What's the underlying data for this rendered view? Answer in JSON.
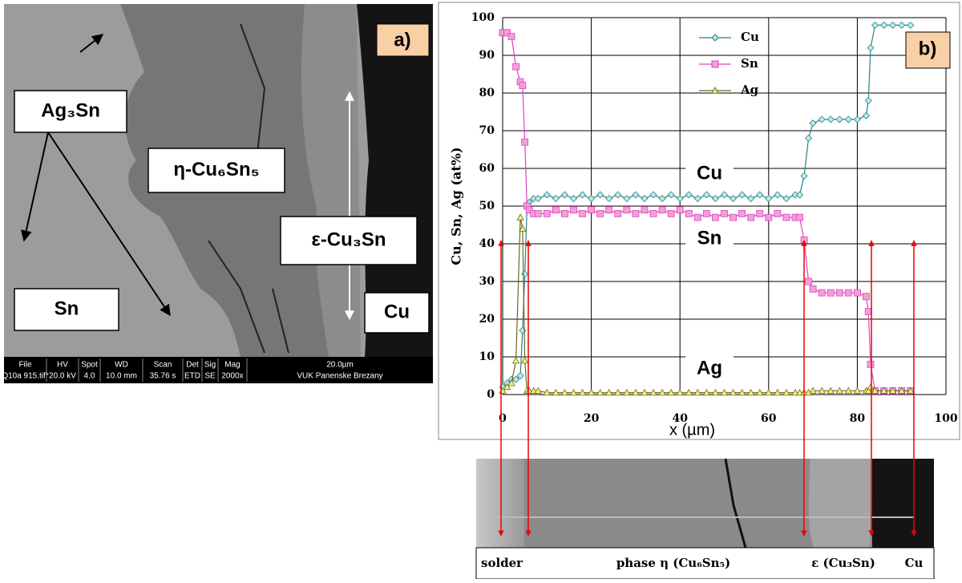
{
  "panel_a": {
    "label": "a)",
    "phases": [
      "Ag₃Sn",
      "η-Cu₆Sn₅",
      "ε-Cu₃Sn",
      "Sn",
      "Cu"
    ],
    "info_bar": [
      {
        "label": "File",
        "value": "Q10a 915.tif*"
      },
      {
        "label": "HV",
        "value": "20.0 kV"
      },
      {
        "label": "Spot",
        "value": "4.0"
      },
      {
        "label": "WD",
        "value": "10.0 mm"
      },
      {
        "label": "Scan",
        "value": "35.76 s"
      },
      {
        "label": "Det",
        "value": "ETD"
      },
      {
        "label": "Sig",
        "value": "SE"
      },
      {
        "label": "Mag",
        "value": "2000x"
      },
      {
        "label": "20.0µm",
        "value": "VUK Panenske Brezany"
      }
    ]
  },
  "chart_data": {
    "type": "line",
    "panel_label": "b)",
    "x_label": "x (µm)",
    "y_label": "Cu, Sn, Ag (at%)",
    "annotations": [
      "Cu",
      "Sn",
      "Ag"
    ],
    "x": [
      0,
      1,
      2,
      3,
      4,
      4.5,
      5,
      5.5,
      6,
      7,
      8,
      10,
      12,
      14,
      16,
      18,
      20,
      22,
      24,
      26,
      28,
      30,
      32,
      34,
      36,
      38,
      40,
      42,
      44,
      46,
      48,
      50,
      52,
      54,
      56,
      58,
      60,
      62,
      64,
      66,
      67,
      68,
      69,
      70,
      72,
      74,
      76,
      78,
      80,
      82,
      82.5,
      83,
      84,
      86,
      88,
      90,
      92
    ],
    "series": [
      {
        "name": "Cu",
        "color": "#2e7f7f",
        "fill": "#b6ecec",
        "marker": "diamond",
        "values": [
          2,
          3,
          4,
          4,
          5,
          17,
          32,
          50,
          51,
          52,
          52,
          53,
          52,
          53,
          52,
          53,
          52,
          53,
          52,
          53,
          52,
          53,
          52,
          53,
          52,
          53,
          52,
          53,
          52,
          53,
          52,
          53,
          52,
          53,
          52,
          53,
          52,
          53,
          52,
          53,
          53,
          58,
          68,
          72,
          73,
          73,
          73,
          73,
          73,
          74,
          78,
          92,
          98,
          98,
          98,
          98,
          98
        ]
      },
      {
        "name": "Sn",
        "color": "#e040c0",
        "fill": "#f0a0d8",
        "marker": "square",
        "values": [
          96,
          96,
          95,
          87,
          83,
          82,
          67,
          50,
          49,
          48,
          48,
          48,
          49,
          48,
          49,
          48,
          49,
          48,
          49,
          48,
          49,
          48,
          49,
          48,
          49,
          48,
          49,
          48,
          47,
          48,
          47,
          48,
          47,
          48,
          47,
          48,
          47,
          48,
          47,
          47,
          47,
          41,
          30,
          28,
          27,
          27,
          27,
          27,
          27,
          26,
          22,
          8,
          1,
          1,
          1,
          1,
          1
        ]
      },
      {
        "name": "Ag",
        "color": "#6b6b20",
        "fill": "#f4f080",
        "marker": "triangle",
        "values": [
          1,
          2,
          3,
          9,
          47,
          44,
          9,
          1,
          1,
          1,
          1,
          0.5,
          0.5,
          0.5,
          0.5,
          0.5,
          0.5,
          0.5,
          0.5,
          0.5,
          0.5,
          0.5,
          0.5,
          0.5,
          0.5,
          0.5,
          0.5,
          0.5,
          0.5,
          0.5,
          0.5,
          0.5,
          0.5,
          0.5,
          0.5,
          0.5,
          0.5,
          0.5,
          0.5,
          0.5,
          0.5,
          0.5,
          0.5,
          1,
          1,
          1,
          1,
          1,
          1,
          1,
          1,
          2,
          1,
          1,
          1,
          1,
          1
        ]
      }
    ],
    "xlim": [
      0,
      100
    ],
    "xticks": [
      0,
      20,
      40,
      60,
      80,
      100
    ],
    "ylim": [
      0,
      100
    ],
    "yticks": [
      0,
      10,
      20,
      30,
      40,
      50,
      60,
      70,
      80,
      90,
      100
    ],
    "grid": true,
    "legend": "top-center"
  },
  "strip": {
    "labels": [
      "solder",
      "phase η (Cu₆Sn₅)",
      "ε (Cu₃Sn)",
      "Cu"
    ]
  }
}
